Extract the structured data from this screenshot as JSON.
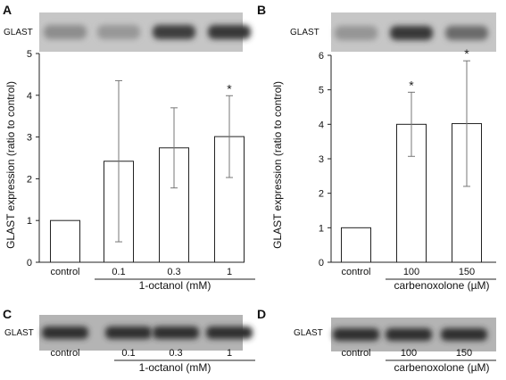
{
  "panels": {
    "A": "A",
    "B": "B",
    "C": "C",
    "D": "D"
  },
  "blot_label": "GLAST",
  "chart_data": [
    {
      "type": "bar",
      "panel": "A",
      "categories": [
        "control",
        "0.1",
        "0.3",
        "1"
      ],
      "values": [
        1.0,
        2.42,
        2.74,
        3.01
      ],
      "error": [
        0,
        1.93,
        0.96,
        0.98
      ],
      "significant": [
        false,
        false,
        false,
        true
      ],
      "ylabel": "GLAST expression (ratio to control)",
      "ylim": [
        0,
        5
      ],
      "yticks": [
        "0",
        "1",
        "2",
        "3",
        "4",
        "5"
      ],
      "group_label": "1-octanol (mM)",
      "annotation": "*",
      "blot_intensity": [
        0.35,
        0.28,
        0.82,
        0.85
      ]
    },
    {
      "type": "bar",
      "panel": "B",
      "categories": [
        "control",
        "100",
        "150"
      ],
      "values": [
        1.0,
        4.0,
        4.02
      ],
      "error": [
        0,
        0.93,
        1.82
      ],
      "significant": [
        false,
        true,
        true
      ],
      "ylabel": "GLAST expression (ratio to control)",
      "ylim": [
        0,
        6
      ],
      "yticks": [
        "0",
        "1",
        "2",
        "3",
        "4",
        "5",
        "6"
      ],
      "group_label": "carbenoxolone (µM)",
      "annotation": "*",
      "blot_intensity": [
        0.3,
        0.85,
        0.55
      ]
    }
  ],
  "blots": {
    "C": {
      "categories": [
        "control",
        "0.1",
        "0.3",
        "1"
      ],
      "group_label": "1-octanol (mM)",
      "intensity": [
        0.9,
        0.9,
        0.9,
        0.9
      ]
    },
    "D": {
      "categories": [
        "control",
        "100",
        "150"
      ],
      "group_label": "carbenoxolone (µM)",
      "intensity": [
        0.9,
        0.9,
        0.9
      ]
    }
  }
}
